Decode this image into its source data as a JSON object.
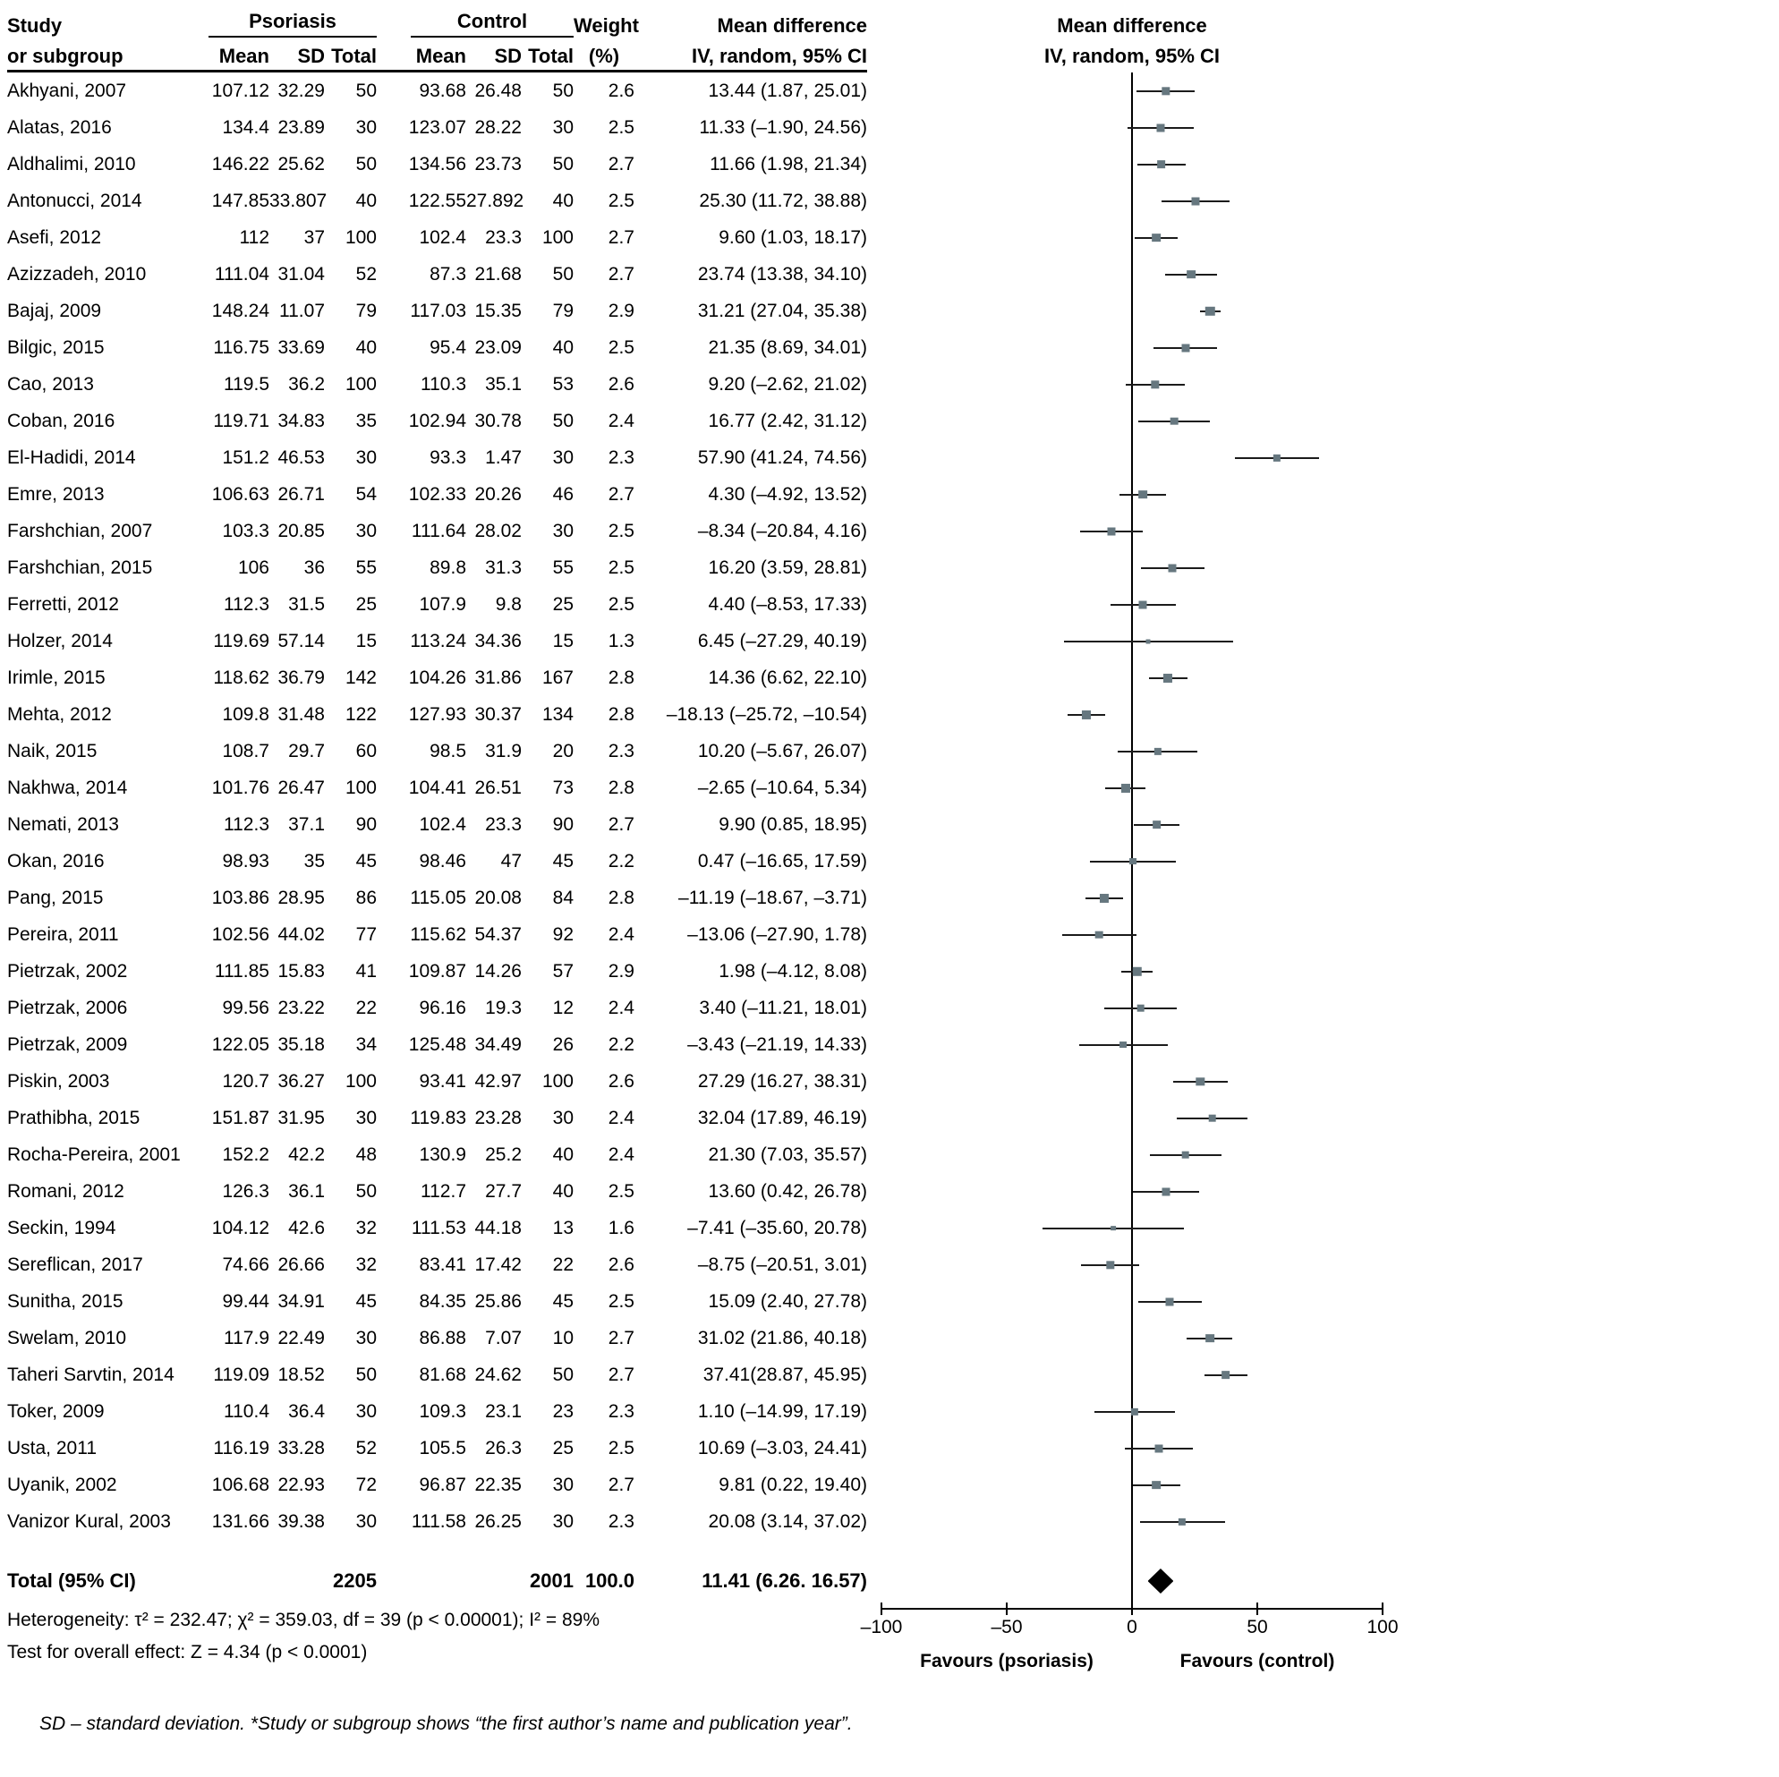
{
  "colors": {
    "marker": "#66777f",
    "ci_line": "#1b1b1b",
    "diamond": "#000000",
    "text": "#000000"
  },
  "header": {
    "study_line1": "Study",
    "study_line2": "or subgroup",
    "group_psoriasis": "Psoriasis",
    "group_control": "Control",
    "sub_mean": "Mean",
    "sub_sd": "SD",
    "sub_total": "Total",
    "weight_line1": "Weight",
    "weight_line2": "(%)",
    "md_line1": "Mean difference",
    "md_line2": "IV, random, 95% CI",
    "plot_line1": "Mean difference",
    "plot_line2": "IV, random, 95% CI"
  },
  "chart_data": {
    "type": "forest",
    "effect_measure": "Mean difference, IV, random, 95% CI",
    "axis": {
      "min": -100,
      "max": 100,
      "tick_values": [
        -100,
        -50,
        0,
        50,
        100
      ],
      "tick_labels": [
        "–100",
        "–50",
        "0",
        "50",
        "100"
      ]
    },
    "favours_left": "Favours (psoriasis)",
    "favours_right": "Favours (control)",
    "studies": [
      {
        "study": "Akhyani, 2007",
        "p_mean": "107.12",
        "p_sd": "32.29",
        "p_total": "50",
        "c_mean": "93.68",
        "c_sd": "26.48",
        "c_total": "50",
        "weight": "2.6",
        "md_text": "13.44 (1.87, 25.01)",
        "md": 13.44,
        "lo": 1.87,
        "hi": 25.01
      },
      {
        "study": "Alatas, 2016",
        "p_mean": "134.4",
        "p_sd": "23.89",
        "p_total": "30",
        "c_mean": "123.07",
        "c_sd": "28.22",
        "c_total": "30",
        "weight": "2.5",
        "md_text": "11.33 (–1.90, 24.56)",
        "md": 11.33,
        "lo": -1.9,
        "hi": 24.56
      },
      {
        "study": "Aldhalimi, 2010",
        "p_mean": "146.22",
        "p_sd": "25.62",
        "p_total": "50",
        "c_mean": "134.56",
        "c_sd": "23.73",
        "c_total": "50",
        "weight": "2.7",
        "md_text": "11.66 (1.98, 21.34)",
        "md": 11.66,
        "lo": 1.98,
        "hi": 21.34
      },
      {
        "study": "Antonucci, 2014",
        "p_mean": "147.85",
        "p_sd": "33.807",
        "p_total": "40",
        "c_mean": "122.55",
        "c_sd": "27.892",
        "c_total": "40",
        "weight": "2.5",
        "md_text": "25.30 (11.72, 38.88)",
        "md": 25.3,
        "lo": 11.72,
        "hi": 38.88
      },
      {
        "study": "Asefi, 2012",
        "p_mean": "112",
        "p_sd": "37",
        "p_total": "100",
        "c_mean": "102.4",
        "c_sd": "23.3",
        "c_total": "100",
        "weight": "2.7",
        "md_text": "9.60 (1.03, 18.17)",
        "md": 9.6,
        "lo": 1.03,
        "hi": 18.17
      },
      {
        "study": "Azizzadeh, 2010",
        "p_mean": "111.04",
        "p_sd": "31.04",
        "p_total": "52",
        "c_mean": "87.3",
        "c_sd": "21.68",
        "c_total": "50",
        "weight": "2.7",
        "md_text": "23.74 (13.38, 34.10)",
        "md": 23.74,
        "lo": 13.38,
        "hi": 34.1
      },
      {
        "study": "Bajaj, 2009",
        "p_mean": "148.24",
        "p_sd": "11.07",
        "p_total": "79",
        "c_mean": "117.03",
        "c_sd": "15.35",
        "c_total": "79",
        "weight": "2.9",
        "md_text": "31.21 (27.04, 35.38)",
        "md": 31.21,
        "lo": 27.04,
        "hi": 35.38
      },
      {
        "study": "Bilgic, 2015",
        "p_mean": "116.75",
        "p_sd": "33.69",
        "p_total": "40",
        "c_mean": "95.4",
        "c_sd": "23.09",
        "c_total": "40",
        "weight": "2.5",
        "md_text": "21.35 (8.69, 34.01)",
        "md": 21.35,
        "lo": 8.69,
        "hi": 34.01
      },
      {
        "study": "Cao, 2013",
        "p_mean": "119.5",
        "p_sd": "36.2",
        "p_total": "100",
        "c_mean": "110.3",
        "c_sd": "35.1",
        "c_total": "53",
        "weight": "2.6",
        "md_text": "9.20 (–2.62, 21.02)",
        "md": 9.2,
        "lo": -2.62,
        "hi": 21.02
      },
      {
        "study": "Coban, 2016",
        "p_mean": "119.71",
        "p_sd": "34.83",
        "p_total": "35",
        "c_mean": "102.94",
        "c_sd": "30.78",
        "c_total": "50",
        "weight": "2.4",
        "md_text": "16.77 (2.42, 31.12)",
        "md": 16.77,
        "lo": 2.42,
        "hi": 31.12
      },
      {
        "study": "El-Hadidi, 2014",
        "p_mean": "151.2",
        "p_sd": "46.53",
        "p_total": "30",
        "c_mean": "93.3",
        "c_sd": "1.47",
        "c_total": "30",
        "weight": "2.3",
        "md_text": "57.90 (41.24, 74.56)",
        "md": 57.9,
        "lo": 41.24,
        "hi": 74.56
      },
      {
        "study": "Emre, 2013",
        "p_mean": "106.63",
        "p_sd": "26.71",
        "p_total": "54",
        "c_mean": "102.33",
        "c_sd": "20.26",
        "c_total": "46",
        "weight": "2.7",
        "md_text": "4.30 (–4.92, 13.52)",
        "md": 4.3,
        "lo": -4.92,
        "hi": 13.52
      },
      {
        "study": "Farshchian, 2007",
        "p_mean": "103.3",
        "p_sd": "20.85",
        "p_total": "30",
        "c_mean": "111.64",
        "c_sd": "28.02",
        "c_total": "30",
        "weight": "2.5",
        "md_text": "–8.34 (–20.84, 4.16)",
        "md": -8.34,
        "lo": -20.84,
        "hi": 4.16
      },
      {
        "study": "Farshchian, 2015",
        "p_mean": "106",
        "p_sd": "36",
        "p_total": "55",
        "c_mean": "89.8",
        "c_sd": "31.3",
        "c_total": "55",
        "weight": "2.5",
        "md_text": "16.20 (3.59, 28.81)",
        "md": 16.2,
        "lo": 3.59,
        "hi": 28.81
      },
      {
        "study": "Ferretti, 2012",
        "p_mean": "112.3",
        "p_sd": "31.5",
        "p_total": "25",
        "c_mean": "107.9",
        "c_sd": "9.8",
        "c_total": "25",
        "weight": "2.5",
        "md_text": "4.40 (–8.53, 17.33)",
        "md": 4.4,
        "lo": -8.53,
        "hi": 17.33
      },
      {
        "study": "Holzer, 2014",
        "p_mean": "119.69",
        "p_sd": "57.14",
        "p_total": "15",
        "c_mean": "113.24",
        "c_sd": "34.36",
        "c_total": "15",
        "weight": "1.3",
        "md_text": "6.45 (–27.29, 40.19)",
        "md": 6.45,
        "lo": -27.29,
        "hi": 40.19
      },
      {
        "study": "Irimle, 2015",
        "p_mean": "118.62",
        "p_sd": "36.79",
        "p_total": "142",
        "c_mean": "104.26",
        "c_sd": "31.86",
        "c_total": "167",
        "weight": "2.8",
        "md_text": "14.36 (6.62, 22.10)",
        "md": 14.36,
        "lo": 6.62,
        "hi": 22.1
      },
      {
        "study": "Mehta, 2012",
        "p_mean": "109.8",
        "p_sd": "31.48",
        "p_total": "122",
        "c_mean": "127.93",
        "c_sd": "30.37",
        "c_total": "134",
        "weight": "2.8",
        "md_text": "–18.13 (–25.72, –10.54)",
        "md": -18.13,
        "lo": -25.72,
        "hi": -10.54
      },
      {
        "study": "Naik, 2015",
        "p_mean": "108.7",
        "p_sd": "29.7",
        "p_total": "60",
        "c_mean": "98.5",
        "c_sd": "31.9",
        "c_total": "20",
        "weight": "2.3",
        "md_text": "10.20 (–5.67, 26.07)",
        "md": 10.2,
        "lo": -5.67,
        "hi": 26.07
      },
      {
        "study": "Nakhwa, 2014",
        "p_mean": "101.76",
        "p_sd": "26.47",
        "p_total": "100",
        "c_mean": "104.41",
        "c_sd": "26.51",
        "c_total": "73",
        "weight": "2.8",
        "md_text": "–2.65 (–10.64, 5.34)",
        "md": -2.65,
        "lo": -10.64,
        "hi": 5.34
      },
      {
        "study": "Nemati, 2013",
        "p_mean": "112.3",
        "p_sd": "37.1",
        "p_total": "90",
        "c_mean": "102.4",
        "c_sd": "23.3",
        "c_total": "90",
        "weight": "2.7",
        "md_text": "9.90 (0.85, 18.95)",
        "md": 9.9,
        "lo": 0.85,
        "hi": 18.95
      },
      {
        "study": "Okan, 2016",
        "p_mean": "98.93",
        "p_sd": "35",
        "p_total": "45",
        "c_mean": "98.46",
        "c_sd": "47",
        "c_total": "45",
        "weight": "2.2",
        "md_text": "0.47 (–16.65, 17.59)",
        "md": 0.47,
        "lo": -16.65,
        "hi": 17.59
      },
      {
        "study": "Pang, 2015",
        "p_mean": "103.86",
        "p_sd": "28.95",
        "p_total": "86",
        "c_mean": "115.05",
        "c_sd": "20.08",
        "c_total": "84",
        "weight": "2.8",
        "md_text": "–11.19 (–18.67, –3.71)",
        "md": -11.19,
        "lo": -18.67,
        "hi": -3.71
      },
      {
        "study": "Pereira, 2011",
        "p_mean": "102.56",
        "p_sd": "44.02",
        "p_total": "77",
        "c_mean": "115.62",
        "c_sd": "54.37",
        "c_total": "92",
        "weight": "2.4",
        "md_text": "–13.06 (–27.90, 1.78)",
        "md": -13.06,
        "lo": -27.9,
        "hi": 1.78
      },
      {
        "study": "Pietrzak, 2002",
        "p_mean": "111.85",
        "p_sd": "15.83",
        "p_total": "41",
        "c_mean": "109.87",
        "c_sd": "14.26",
        "c_total": "57",
        "weight": "2.9",
        "md_text": "1.98 (–4.12, 8.08)",
        "md": 1.98,
        "lo": -4.12,
        "hi": 8.08
      },
      {
        "study": "Pietrzak, 2006",
        "p_mean": "99.56",
        "p_sd": "23.22",
        "p_total": "22",
        "c_mean": "96.16",
        "c_sd": "19.3",
        "c_total": "12",
        "weight": "2.4",
        "md_text": "3.40 (–11.21, 18.01)",
        "md": 3.4,
        "lo": -11.21,
        "hi": 18.01
      },
      {
        "study": "Pietrzak, 2009",
        "p_mean": "122.05",
        "p_sd": "35.18",
        "p_total": "34",
        "c_mean": "125.48",
        "c_sd": "34.49",
        "c_total": "26",
        "weight": "2.2",
        "md_text": "–3.43 (–21.19, 14.33)",
        "md": -3.43,
        "lo": -21.19,
        "hi": 14.33
      },
      {
        "study": "Piskin, 2003",
        "p_mean": "120.7",
        "p_sd": "36.27",
        "p_total": "100",
        "c_mean": "93.41",
        "c_sd": "42.97",
        "c_total": "100",
        "weight": "2.6",
        "md_text": "27.29 (16.27, 38.31)",
        "md": 27.29,
        "lo": 16.27,
        "hi": 38.31
      },
      {
        "study": "Prathibha, 2015",
        "p_mean": "151.87",
        "p_sd": "31.95",
        "p_total": "30",
        "c_mean": "119.83",
        "c_sd": "23.28",
        "c_total": "30",
        "weight": "2.4",
        "md_text": "32.04 (17.89, 46.19)",
        "md": 32.04,
        "lo": 17.89,
        "hi": 46.19
      },
      {
        "study": "Rocha-Pereira, 2001",
        "p_mean": "152.2",
        "p_sd": "42.2",
        "p_total": "48",
        "c_mean": "130.9",
        "c_sd": "25.2",
        "c_total": "40",
        "weight": "2.4",
        "md_text": "21.30 (7.03, 35.57)",
        "md": 21.3,
        "lo": 7.03,
        "hi": 35.57
      },
      {
        "study": "Romani, 2012",
        "p_mean": "126.3",
        "p_sd": "36.1",
        "p_total": "50",
        "c_mean": "112.7",
        "c_sd": "27.7",
        "c_total": "40",
        "weight": "2.5",
        "md_text": "13.60 (0.42, 26.78)",
        "md": 13.6,
        "lo": 0.42,
        "hi": 26.78
      },
      {
        "study": "Seckin, 1994",
        "p_mean": "104.12",
        "p_sd": "42.6",
        "p_total": "32",
        "c_mean": "111.53",
        "c_sd": "44.18",
        "c_total": "13",
        "weight": "1.6",
        "md_text": "–7.41 (–35.60, 20.78)",
        "md": -7.41,
        "lo": -35.6,
        "hi": 20.78
      },
      {
        "study": "Sereflican, 2017",
        "p_mean": "74.66",
        "p_sd": "26.66",
        "p_total": "32",
        "c_mean": "83.41",
        "c_sd": "17.42",
        "c_total": "22",
        "weight": "2.6",
        "md_text": "–8.75 (–20.51, 3.01)",
        "md": -8.75,
        "lo": -20.51,
        "hi": 3.01
      },
      {
        "study": "Sunitha, 2015",
        "p_mean": "99.44",
        "p_sd": "34.91",
        "p_total": "45",
        "c_mean": "84.35",
        "c_sd": "25.86",
        "c_total": "45",
        "weight": "2.5",
        "md_text": "15.09 (2.40, 27.78)",
        "md": 15.09,
        "lo": 2.4,
        "hi": 27.78
      },
      {
        "study": "Swelam, 2010",
        "p_mean": "117.9",
        "p_sd": "22.49",
        "p_total": "30",
        "c_mean": "86.88",
        "c_sd": "7.07",
        "c_total": "10",
        "weight": "2.7",
        "md_text": "31.02 (21.86, 40.18)",
        "md": 31.02,
        "lo": 21.86,
        "hi": 40.18
      },
      {
        "study": "Taheri Sarvtin, 2014",
        "p_mean": "119.09",
        "p_sd": "18.52",
        "p_total": "50",
        "c_mean": "81.68",
        "c_sd": "24.62",
        "c_total": "50",
        "weight": "2.7",
        "md_text": "37.41(28.87, 45.95)",
        "md": 37.41,
        "lo": 28.87,
        "hi": 45.95
      },
      {
        "study": "Toker, 2009",
        "p_mean": "110.4",
        "p_sd": "36.4",
        "p_total": "30",
        "c_mean": "109.3",
        "c_sd": "23.1",
        "c_total": "23",
        "weight": "2.3",
        "md_text": "1.10 (–14.99, 17.19)",
        "md": 1.1,
        "lo": -14.99,
        "hi": 17.19
      },
      {
        "study": "Usta, 2011",
        "p_mean": "116.19",
        "p_sd": "33.28",
        "p_total": "52",
        "c_mean": "105.5",
        "c_sd": "26.3",
        "c_total": "25",
        "weight": "2.5",
        "md_text": "10.69 (–3.03, 24.41)",
        "md": 10.69,
        "lo": -3.03,
        "hi": 24.41
      },
      {
        "study": "Uyanik, 2002",
        "p_mean": "106.68",
        "p_sd": "22.93",
        "p_total": "72",
        "c_mean": "96.87",
        "c_sd": "22.35",
        "c_total": "30",
        "weight": "2.7",
        "md_text": "9.81 (0.22, 19.40)",
        "md": 9.81,
        "lo": 0.22,
        "hi": 19.4
      },
      {
        "study": "Vanizor Kural, 2003",
        "p_mean": "131.66",
        "p_sd": "39.38",
        "p_total": "30",
        "c_mean": "111.58",
        "c_sd": "26.25",
        "c_total": "30",
        "weight": "2.3",
        "md_text": "20.08 (3.14, 37.02)",
        "md": 20.08,
        "lo": 3.14,
        "hi": 37.02
      }
    ],
    "total": {
      "label": "Total (95% CI)",
      "p_total": "2205",
      "c_total": "2001",
      "weight": "100.0",
      "md_text": "11.41 (6.26. 16.57)",
      "md": 11.41,
      "lo": 6.26,
      "hi": 16.57
    }
  },
  "stats": {
    "heterogeneity": "Heterogeneity: τ² = 232.47; χ² = 359.03, df = 39 (p < 0.00001); I² = 89%",
    "overall_effect": "Test for overall effect: Z = 4.34 (p < 0.0001)"
  },
  "footnote": "SD – standard deviation. *Study or subgroup shows “the first author’s name and publication year”."
}
